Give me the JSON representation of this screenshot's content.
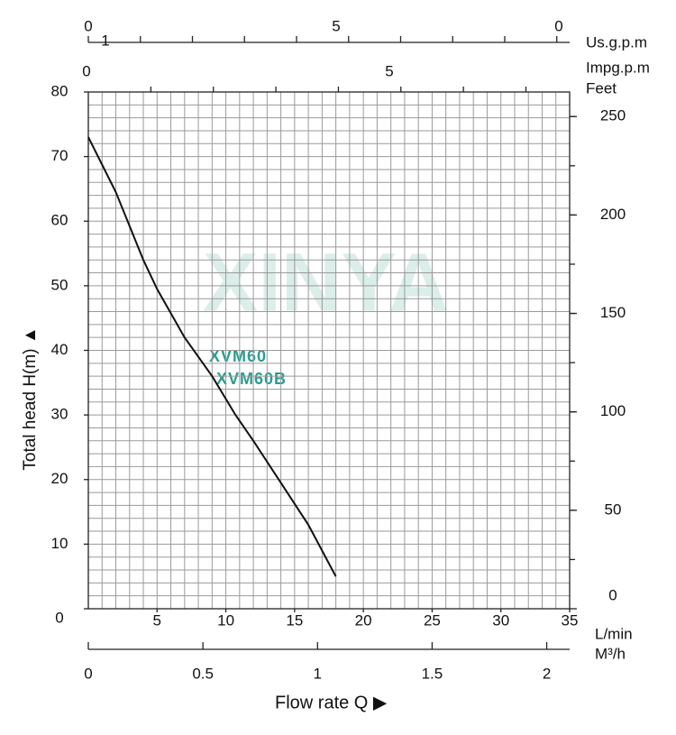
{
  "chart_data": {
    "type": "line",
    "x_label": "Flow rate Q ▶",
    "y_label": "Total head H(m) ▲",
    "x_unit": "L/min",
    "y2_unit": "Feet",
    "x2_unit": "M³/h",
    "top_unit_1": "Us.g.p.m",
    "top_unit_2": "Impg.p.m",
    "top_labels_1": [
      "0",
      "1",
      "5",
      "0"
    ],
    "top_labels_2": [
      "0",
      "5"
    ],
    "watermark": "XINYA",
    "models": [
      "XVM60",
      "XVM60B"
    ],
    "xlim": [
      0,
      35
    ],
    "xticks": [
      5,
      10,
      15,
      20,
      25,
      30,
      35
    ],
    "ylim": [
      0,
      80
    ],
    "yticks": [
      0,
      10,
      20,
      30,
      40,
      50,
      60,
      70,
      80
    ],
    "y2lim": [
      0,
      262.47
    ],
    "y2ticks": [
      0,
      50,
      100,
      150,
      200,
      250
    ],
    "x2lim": [
      0,
      2.1
    ],
    "x2ticks": [
      0,
      0.5,
      1,
      1.5,
      2
    ],
    "grid": true,
    "series": [
      {
        "name": "XVM60",
        "color": "#111111",
        "x": [
          0,
          2,
          4,
          5,
          7,
          9,
          10.7,
          12,
          14,
          16,
          18
        ],
        "values": [
          73,
          64.5,
          54,
          49.5,
          42,
          36,
          30,
          26,
          19.5,
          13,
          5
        ]
      }
    ]
  }
}
